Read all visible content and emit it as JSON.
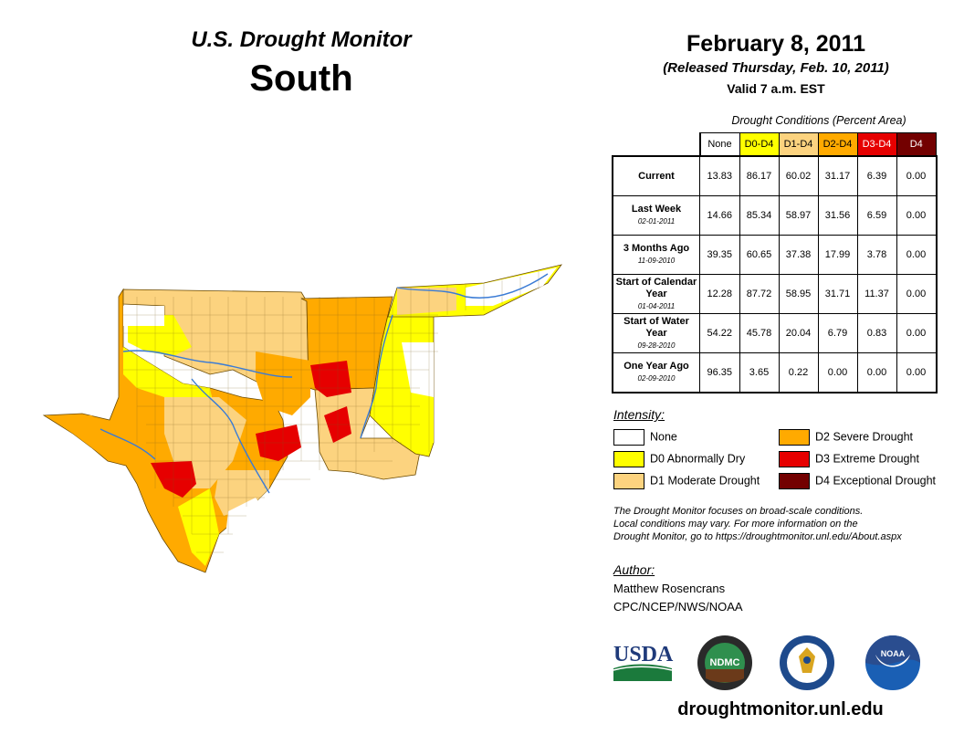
{
  "header": {
    "title": "U.S. Drought Monitor",
    "region": "South"
  },
  "release": {
    "date": "February 8, 2011",
    "released": "(Released Thursday, Feb. 10, 2011)",
    "valid": "Valid 7 a.m. EST"
  },
  "table": {
    "caption": "Drought Conditions (Percent Area)",
    "columns": [
      "None",
      "D0-D4",
      "D1-D4",
      "D2-D4",
      "D3-D4",
      "D4"
    ],
    "column_colors": [
      "#ffffff",
      "#ffff00",
      "#fcd37f",
      "#ffaa00",
      "#e60000",
      "#730000"
    ],
    "rows": [
      {
        "label": "Current",
        "sublabel": "",
        "values": [
          "13.83",
          "86.17",
          "60.02",
          "31.17",
          "6.39",
          "0.00"
        ]
      },
      {
        "label": "Last Week",
        "sublabel": "02-01-2011",
        "values": [
          "14.66",
          "85.34",
          "58.97",
          "31.56",
          "6.59",
          "0.00"
        ]
      },
      {
        "label": "3 Months Ago",
        "sublabel": "11-09-2010",
        "values": [
          "39.35",
          "60.65",
          "37.38",
          "17.99",
          "3.78",
          "0.00"
        ]
      },
      {
        "label": "Start of Calendar Year",
        "sublabel": "01-04-2011",
        "values": [
          "12.28",
          "87.72",
          "58.95",
          "31.71",
          "11.37",
          "0.00"
        ]
      },
      {
        "label": "Start of Water Year",
        "sublabel": "09-28-2010",
        "values": [
          "54.22",
          "45.78",
          "20.04",
          "6.79",
          "0.83",
          "0.00"
        ]
      },
      {
        "label": "One Year Ago",
        "sublabel": "02-09-2010",
        "values": [
          "96.35",
          "3.65",
          "0.22",
          "0.00",
          "0.00",
          "0.00"
        ]
      }
    ]
  },
  "legend": {
    "heading": "Intensity:",
    "items": [
      {
        "label": "None",
        "color": "#ffffff"
      },
      {
        "label": "D0 Abnormally Dry",
        "color": "#ffff00"
      },
      {
        "label": "D1 Moderate Drought",
        "color": "#fcd37f"
      },
      {
        "label": "D2 Severe Drought",
        "color": "#ffaa00"
      },
      {
        "label": "D3 Extreme Drought",
        "color": "#e60000"
      },
      {
        "label": "D4 Exceptional Drought",
        "color": "#730000"
      }
    ]
  },
  "note": {
    "line1": "The Drought Monitor focuses on broad-scale conditions.",
    "line2": "Local conditions may vary. For more information on the",
    "line3": "Drought Monitor, go to https://droughtmonitor.unl.edu/About.aspx"
  },
  "author": {
    "heading": "Author:",
    "name": "Matthew Rosencrans",
    "org": "CPC/NCEP/NWS/NOAA"
  },
  "logos": {
    "usda": "USDA",
    "ndmc": "NDMC",
    "noaa": "NOAA"
  },
  "footer": {
    "url": "droughtmonitor.unl.edu"
  }
}
